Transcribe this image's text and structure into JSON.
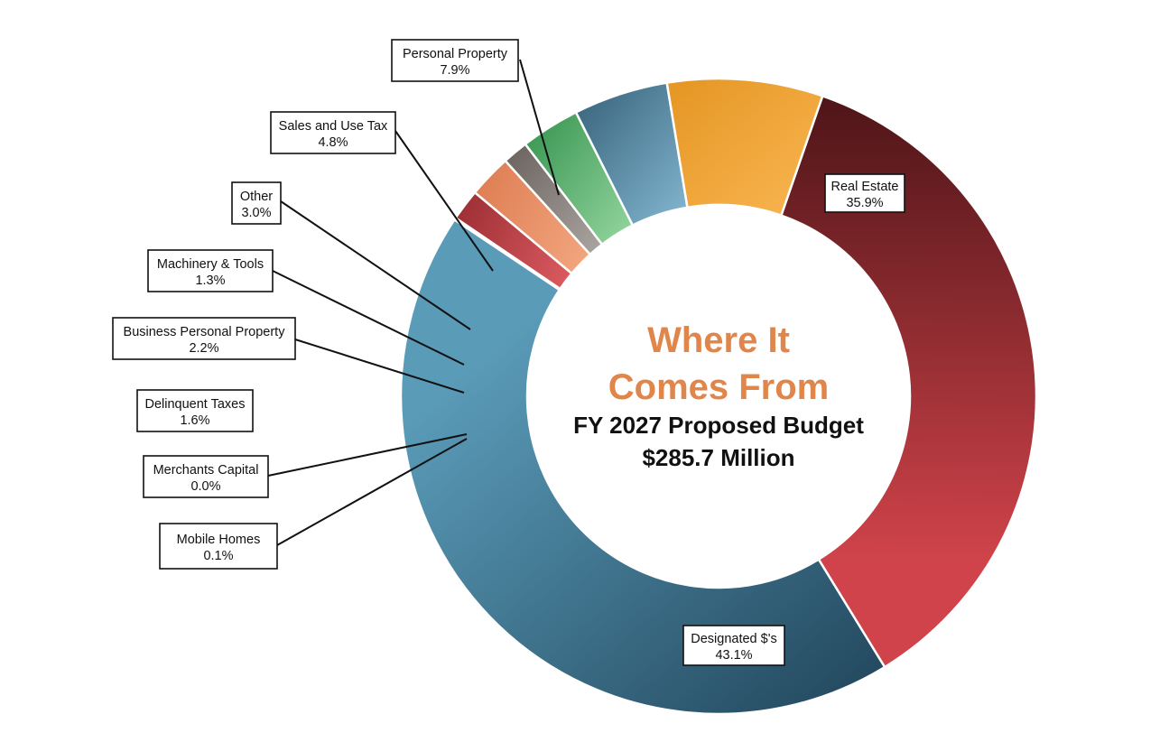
{
  "chart_data": {
    "type": "pie",
    "donut": true,
    "center_text": {
      "title_line1": "Where It",
      "title_line2": "Comes From",
      "subtitle": "FY 2027 Proposed Budget",
      "total": "$285.7 Million"
    },
    "series": [
      {
        "name": "Real Estate",
        "label_value": "35.9%",
        "value": 35.9,
        "color_light": "#d0434a",
        "color_dark": "#4e1518"
      },
      {
        "name": "Designated $'s",
        "label_value": "43.1%",
        "value": 43.1,
        "color_light": "#5a9bb8",
        "color_dark": "#244a60"
      },
      {
        "name": "Mobile Homes",
        "label_value": "0.1%",
        "value": 0.1,
        "color_light": "#c44a4a",
        "color_dark": "#a83a3a"
      },
      {
        "name": "Merchants Capital",
        "label_value": "0.0%",
        "value": 0.0,
        "color_light": "#c44a4a",
        "color_dark": "#a83a3a"
      },
      {
        "name": "Delinquent Taxes",
        "label_value": "1.6%",
        "value": 1.6,
        "color_light": "#d95a5f",
        "color_dark": "#9e3036"
      },
      {
        "name": "Business Personal Property",
        "label_value": "2.2%",
        "value": 2.2,
        "color_light": "#f2a57e",
        "color_dark": "#df7f55"
      },
      {
        "name": "Machinery & Tools",
        "label_value": "1.3%",
        "value": 1.3,
        "color_light": "#a9a39f",
        "color_dark": "#6d6661"
      },
      {
        "name": "Other",
        "label_value": "3.0%",
        "value": 3.0,
        "color_light": "#8fd29a",
        "color_dark": "#3f9a57"
      },
      {
        "name": "Sales and Use Tax",
        "label_value": "4.8%",
        "value": 4.8,
        "color_light": "#7fb2cc",
        "color_dark": "#3e6a82"
      },
      {
        "name": "Personal Property",
        "label_value": "7.9%",
        "value": 7.9,
        "color_light": "#f7b24d",
        "color_dark": "#e59623"
      }
    ],
    "legend_placement": "callouts"
  }
}
